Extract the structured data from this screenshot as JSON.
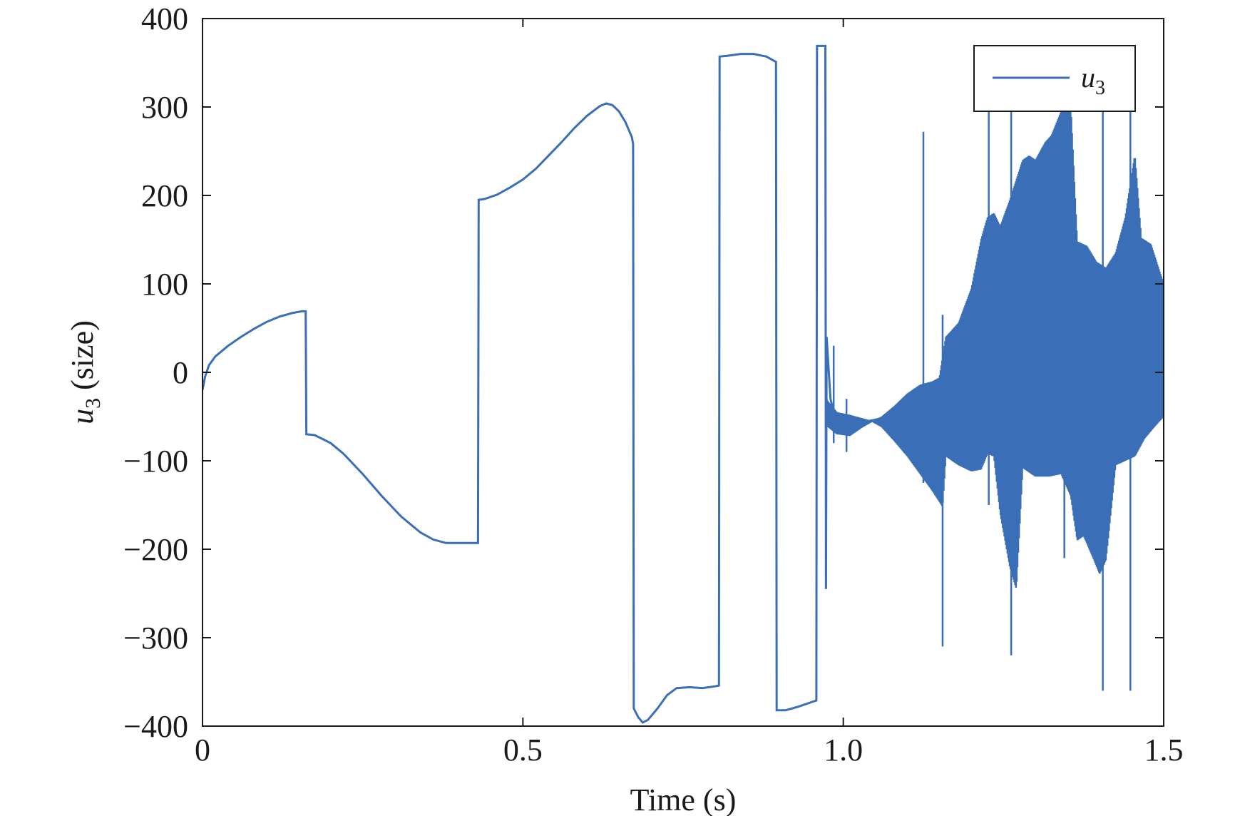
{
  "chart_data": {
    "type": "line",
    "xlabel": "Time (s)",
    "ylabel_var": "u",
    "ylabel_sub": "3",
    "ylabel_rest": " (size)",
    "xlim": [
      0,
      1.5
    ],
    "ylim": [
      -400,
      400
    ],
    "x_ticks": [
      {
        "value": 0,
        "label": "0"
      },
      {
        "value": 0.5,
        "label": "0.5"
      },
      {
        "value": 1.0,
        "label": "1.0"
      },
      {
        "value": 1.5,
        "label": "1.5"
      }
    ],
    "y_ticks": [
      {
        "value": 400,
        "label": "400"
      },
      {
        "value": 300,
        "label": "300"
      },
      {
        "value": 200,
        "label": "200"
      },
      {
        "value": 100,
        "label": "100"
      },
      {
        "value": 0,
        "label": "0"
      },
      {
        "value": -100,
        "label": "−100"
      },
      {
        "value": -200,
        "label": "−200"
      },
      {
        "value": -300,
        "label": "−300"
      },
      {
        "value": -400,
        "label": "−400"
      }
    ],
    "legend": {
      "position": "top-right",
      "var": "u",
      "sub": "3"
    },
    "grid": false,
    "series": [
      {
        "name": "u3",
        "color": "#3a6fb7",
        "points": [
          [
            0.0,
            -20
          ],
          [
            0.004,
            -5
          ],
          [
            0.01,
            8
          ],
          [
            0.02,
            18
          ],
          [
            0.04,
            30
          ],
          [
            0.06,
            40
          ],
          [
            0.08,
            49
          ],
          [
            0.1,
            57
          ],
          [
            0.12,
            63
          ],
          [
            0.14,
            67
          ],
          [
            0.155,
            69
          ],
          [
            0.161,
            69
          ],
          [
            0.162,
            -70
          ],
          [
            0.175,
            -71
          ],
          [
            0.2,
            -80
          ],
          [
            0.22,
            -92
          ],
          [
            0.25,
            -115
          ],
          [
            0.28,
            -140
          ],
          [
            0.31,
            -163
          ],
          [
            0.34,
            -181
          ],
          [
            0.36,
            -189
          ],
          [
            0.38,
            -193
          ],
          [
            0.43,
            -193
          ],
          [
            0.431,
            195
          ],
          [
            0.44,
            196
          ],
          [
            0.46,
            201
          ],
          [
            0.48,
            209
          ],
          [
            0.5,
            218
          ],
          [
            0.52,
            230
          ],
          [
            0.54,
            245
          ],
          [
            0.56,
            260
          ],
          [
            0.58,
            276
          ],
          [
            0.6,
            290
          ],
          [
            0.62,
            301
          ],
          [
            0.63,
            304
          ],
          [
            0.64,
            302
          ],
          [
            0.65,
            295
          ],
          [
            0.66,
            283
          ],
          [
            0.67,
            266
          ],
          [
            0.672,
            258
          ],
          [
            0.673,
            -380
          ],
          [
            0.68,
            -390
          ],
          [
            0.687,
            -396
          ],
          [
            0.695,
            -393
          ],
          [
            0.71,
            -380
          ],
          [
            0.725,
            -365
          ],
          [
            0.74,
            -357
          ],
          [
            0.76,
            -356
          ],
          [
            0.78,
            -357
          ],
          [
            0.8,
            -355
          ],
          [
            0.806,
            -354
          ],
          [
            0.807,
            357
          ],
          [
            0.82,
            358
          ],
          [
            0.84,
            360
          ],
          [
            0.86,
            360
          ],
          [
            0.88,
            357
          ],
          [
            0.895,
            351
          ],
          [
            0.896,
            -382
          ],
          [
            0.91,
            -382
          ],
          [
            0.93,
            -378
          ],
          [
            0.95,
            -373
          ],
          [
            0.958,
            -371
          ],
          [
            0.959,
            369
          ],
          [
            0.972,
            369
          ],
          [
            0.973,
            -245
          ],
          [
            0.974,
            40
          ],
          [
            0.98,
            -30
          ],
          [
            0.99,
            -60
          ],
          [
            1.0,
            -66
          ],
          [
            1.01,
            -62
          ],
          [
            1.02,
            -58
          ],
          [
            1.04,
            -55
          ],
          [
            1.06,
            -52
          ],
          [
            1.08,
            -46
          ],
          [
            1.1,
            -38
          ]
        ]
      }
    ]
  }
}
